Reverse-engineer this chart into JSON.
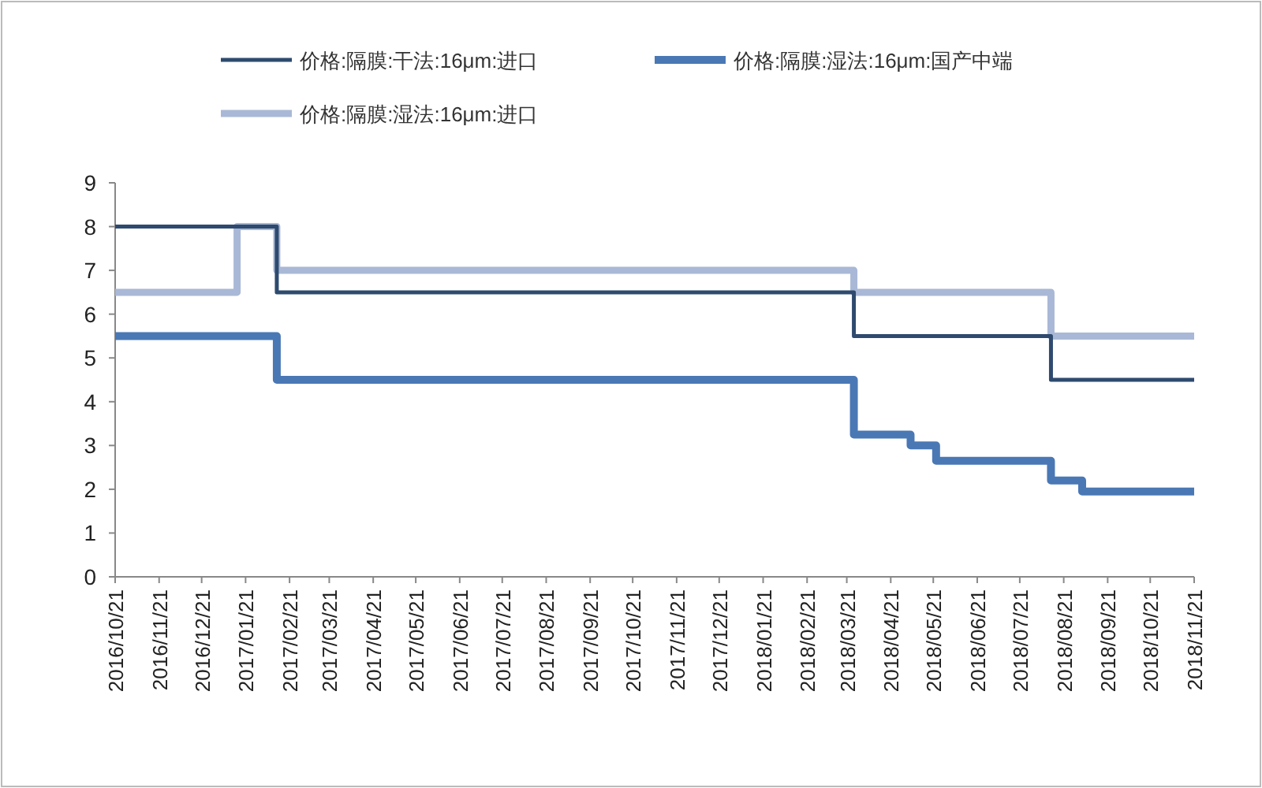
{
  "chart_data": {
    "type": "step",
    "series": [
      {
        "name": "价格:隔膜:干法:16μm:进口",
        "color": "#2e4a6e",
        "x": [
          "2016-10-21",
          "2017-02-12",
          "2018-03-26",
          "2018-08-12",
          "2018-11-21"
        ],
        "values": [
          8,
          6.5,
          5.5,
          4.5,
          4.5
        ]
      },
      {
        "name": "价格:隔膜:湿法:16μm:国产中端",
        "color": "#4a78b5",
        "x": [
          "2016-10-21",
          "2017-02-12",
          "2018-03-26",
          "2018-05-05",
          "2018-05-23",
          "2018-08-12",
          "2018-09-03",
          "2018-11-21"
        ],
        "values": [
          5.5,
          4.5,
          3.25,
          3.0,
          2.65,
          2.2,
          1.95,
          1.95
        ]
      },
      {
        "name": "价格:隔膜:湿法:16μm:进口",
        "color": "#a9b8d6",
        "x": [
          "2016-10-21",
          "2017-01-15",
          "2017-02-12",
          "2018-03-26",
          "2018-08-12",
          "2018-11-21"
        ],
        "values": [
          6.5,
          8,
          7,
          6.5,
          5.5,
          5.5
        ]
      }
    ],
    "xlim": [
      "2016-10-21",
      "2018-11-21"
    ],
    "xticks": [
      {
        "value": "2016-10-21",
        "label": "2016/10/21"
      },
      {
        "value": "2016-11-21",
        "label": "2016/11/21"
      },
      {
        "value": "2016-12-21",
        "label": "2016/12/21"
      },
      {
        "value": "2017-01-21",
        "label": "2017/01/21"
      },
      {
        "value": "2017-02-21",
        "label": "2017/02/21"
      },
      {
        "value": "2017-03-21",
        "label": "2017/03/21"
      },
      {
        "value": "2017-04-21",
        "label": "2017/04/21"
      },
      {
        "value": "2017-05-21",
        "label": "2017/05/21"
      },
      {
        "value": "2017-06-21",
        "label": "2017/06/21"
      },
      {
        "value": "2017-07-21",
        "label": "2017/07/21"
      },
      {
        "value": "2017-08-21",
        "label": "2017/08/21"
      },
      {
        "value": "2017-09-21",
        "label": "2017/09/21"
      },
      {
        "value": "2017-10-21",
        "label": "2017/10/21"
      },
      {
        "value": "2017-11-21",
        "label": "2017/11/21"
      },
      {
        "value": "2017-12-21",
        "label": "2017/12/21"
      },
      {
        "value": "2018-01-21",
        "label": "2018/01/21"
      },
      {
        "value": "2018-02-21",
        "label": "2018/02/21"
      },
      {
        "value": "2018-03-21",
        "label": "2018/03/21"
      },
      {
        "value": "2018-04-21",
        "label": "2018/04/21"
      },
      {
        "value": "2018-05-21",
        "label": "2018/05/21"
      },
      {
        "value": "2018-06-21",
        "label": "2018/06/21"
      },
      {
        "value": "2018-07-21",
        "label": "2018/07/21"
      },
      {
        "value": "2018-08-21",
        "label": "2018/08/21"
      },
      {
        "value": "2018-09-21",
        "label": "2018/09/21"
      },
      {
        "value": "2018-10-21",
        "label": "2018/10/21"
      },
      {
        "value": "2018-11-21",
        "label": "2018/11/21"
      }
    ],
    "ylim": [
      0,
      9
    ],
    "yticks": [
      0,
      1,
      2,
      3,
      4,
      5,
      6,
      7,
      8,
      9
    ],
    "legend": "top",
    "grid": false
  }
}
